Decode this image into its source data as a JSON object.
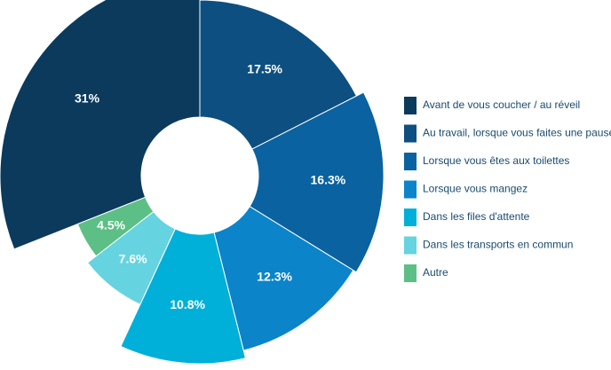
{
  "chart_data": {
    "type": "pie",
    "categories": [
      "Avant de vous coucher / au réveil",
      "Au travail, lorsque vous faites une pause",
      "Lorsque vous êtes aux toilettes",
      "Lorsque vous mangez",
      "Dans les files d'attente",
      "Dans les transports en commun",
      "Autre"
    ],
    "values": [
      31,
      17.5,
      16.3,
      12.3,
      10.8,
      7.6,
      4.5
    ],
    "value_labels": [
      "31%",
      "17.5%",
      "16.3%",
      "12.3%",
      "10.8%",
      "7.6%",
      "4.5%"
    ],
    "colors": [
      "#0c3a5c",
      "#0d4f80",
      "#0a62a0",
      "#0b84c9",
      "#00b0d8",
      "#66d3e0",
      "#5cbf85"
    ],
    "legend": "right"
  }
}
